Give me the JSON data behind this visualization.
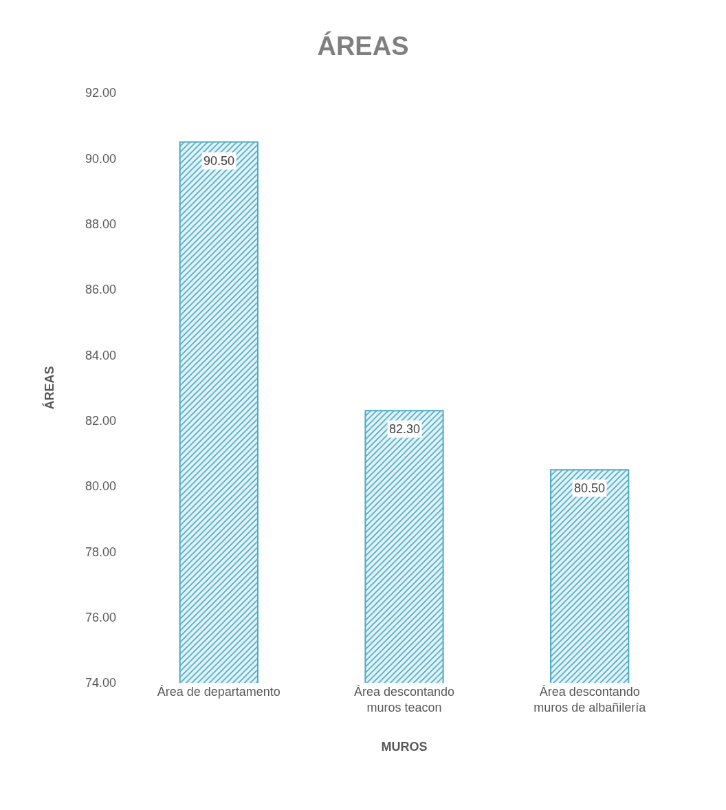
{
  "chart_data": {
    "type": "bar",
    "title": "ÁREAS",
    "xlabel": "MUROS",
    "ylabel": "ÁREAS",
    "categories": [
      "Área de departamento",
      "Área descontando muros teacon",
      "Área descontando muros de albañilería"
    ],
    "series": [
      {
        "color": "#4bacc6",
        "values": [
          90.5,
          82.3,
          80.5
        ],
        "value_labels": [
          "90.50",
          "82.30",
          "80.50"
        ]
      }
    ],
    "ylim": [
      74,
      92
    ],
    "yticks": [
      {
        "value": 74,
        "label": "74.00"
      },
      {
        "value": 76,
        "label": "76.00"
      },
      {
        "value": 78,
        "label": "78.00"
      },
      {
        "value": 80,
        "label": "80.00"
      },
      {
        "value": 82,
        "label": "82.00"
      },
      {
        "value": 84,
        "label": "84.00"
      },
      {
        "value": 86,
        "label": "86.00"
      },
      {
        "value": 88,
        "label": "88.00"
      },
      {
        "value": 90,
        "label": "90.00"
      },
      {
        "value": 92,
        "label": "92.00"
      }
    ],
    "grid": false
  }
}
